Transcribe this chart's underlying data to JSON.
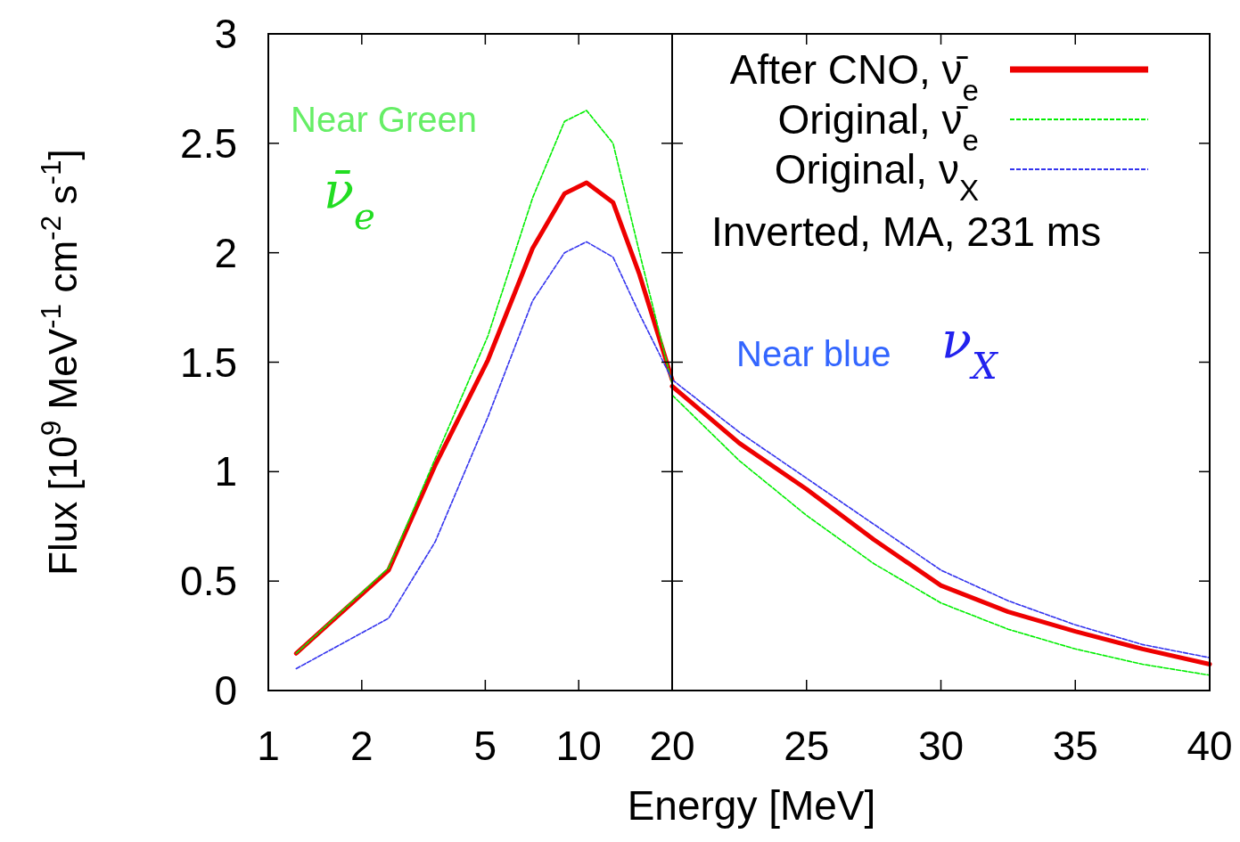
{
  "chart_data": [
    {
      "type": "line",
      "ylabel": "Flux [10$^{9}$ MeV$^{-1}$ cm$^{-2}$ s$^{-1}$]",
      "log": "x",
      "xlim": [
        1,
        20
      ],
      "xticks": [
        1,
        2,
        5,
        10,
        20
      ],
      "ylim": [
        0,
        3
      ],
      "yticks": [
        0,
        0.5,
        1,
        1.5,
        2,
        2.5,
        3
      ],
      "grid": false,
      "legend": false,
      "annotations": [
        "Near Green",
        "ν̄$_{e}$"
      ],
      "x": [
        1.23,
        2.44,
        3.45,
        5.1,
        7.1,
        9.0,
        10.6,
        12.9,
        15.7,
        20
      ],
      "series": [
        {
          "color": "#00ee00",
          "line_style": "dashed",
          "values": [
            0.17,
            0.56,
            1.06,
            1.62,
            2.25,
            2.6,
            2.65,
            2.5,
            2.0,
            1.4
          ]
        },
        {
          "color": "#3333ee",
          "line_style": "dashed",
          "values": [
            0.1,
            0.33,
            0.68,
            1.25,
            1.78,
            2.0,
            2.05,
            1.98,
            1.72,
            1.42
          ]
        },
        {
          "color": "#ee0000",
          "line_style": "solid",
          "values": [
            0.17,
            0.55,
            1.03,
            1.51,
            2.02,
            2.27,
            2.32,
            2.23,
            1.9,
            1.42
          ]
        }
      ]
    },
    {
      "type": "line",
      "xlabel": "Energy [MeV]",
      "xlim": [
        20,
        40
      ],
      "xticks": [
        {
          "value": 20,
          "label": null
        },
        25,
        30,
        35,
        40
      ],
      "ylim": [
        0,
        3
      ],
      "yticks": [
        0,
        0.5,
        1,
        1.5,
        2,
        2.5,
        3
      ],
      "tick_labels": "x",
      "grid": false,
      "legend": "top right",
      "annotations": [
        "Inverted, MA, 231 ms",
        "Near blue",
        "ν$_{X}$"
      ],
      "x": [
        20,
        22.5,
        25,
        27.5,
        30,
        32.5,
        35,
        37.5,
        40
      ],
      "series": [
        {
          "name": "After CNO, ν̄$_{e}$",
          "color": "#ee0000",
          "line_style": "solid",
          "values": [
            1.39,
            1.13,
            0.92,
            0.69,
            0.48,
            0.36,
            0.27,
            0.19,
            0.12
          ]
        },
        {
          "name": "Original, ν̄$_{e}$",
          "color": "#00ee00",
          "line_style": "dashed",
          "values": [
            1.35,
            1.05,
            0.8,
            0.58,
            0.4,
            0.28,
            0.19,
            0.12,
            0.07
          ]
        },
        {
          "name": "Original, ν$_{X}$",
          "color": "#3333ee",
          "line_style": "dashed",
          "values": [
            1.42,
            1.18,
            0.97,
            0.76,
            0.55,
            0.41,
            0.3,
            0.21,
            0.15
          ]
        }
      ]
    }
  ]
}
